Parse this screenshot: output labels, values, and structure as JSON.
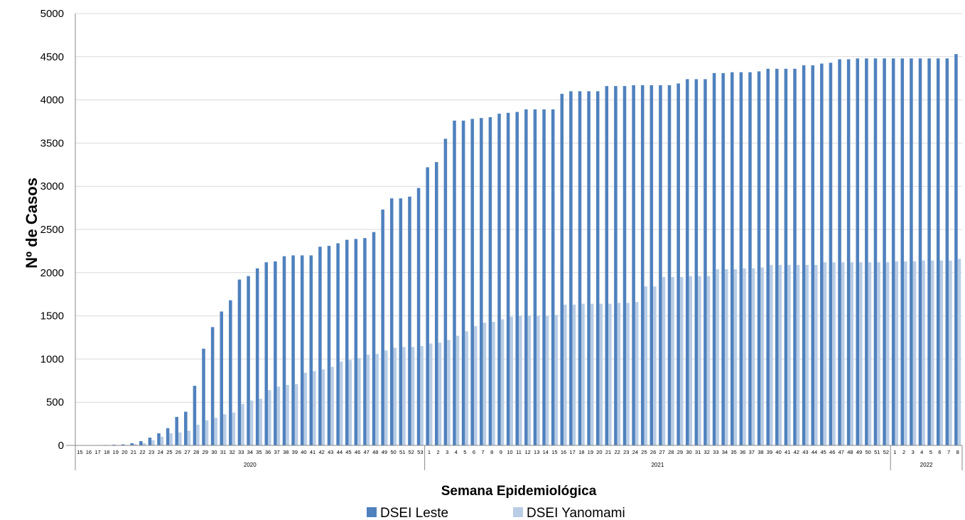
{
  "chart_data": {
    "type": "bar",
    "xlabel": "Semana Epidemiológica",
    "ylabel": "Nº de Casos",
    "ylim": [
      0,
      5000
    ],
    "yticks": [
      0,
      500,
      1000,
      1500,
      2000,
      2500,
      3000,
      3500,
      4000,
      4500,
      5000
    ],
    "grid": true,
    "legend_position": "bottom",
    "categories": [
      "15",
      "16",
      "17",
      "18",
      "19",
      "20",
      "21",
      "22",
      "23",
      "24",
      "25",
      "26",
      "27",
      "28",
      "29",
      "30",
      "31",
      "32",
      "33",
      "34",
      "35",
      "36",
      "37",
      "38",
      "39",
      "40",
      "41",
      "42",
      "43",
      "44",
      "45",
      "46",
      "47",
      "48",
      "49",
      "50",
      "51",
      "52",
      "53",
      "1",
      "2",
      "3",
      "4",
      "5",
      "6",
      "7",
      "8",
      "9",
      "10",
      "11",
      "12",
      "13",
      "14",
      "15",
      "16",
      "17",
      "18",
      "19",
      "20",
      "21",
      "22",
      "23",
      "24",
      "25",
      "26",
      "27",
      "28",
      "29",
      "30",
      "31",
      "32",
      "33",
      "34",
      "35",
      "36",
      "37",
      "38",
      "39",
      "40",
      "41",
      "42",
      "43",
      "44",
      "45",
      "46",
      "47",
      "48",
      "49",
      "50",
      "51",
      "52",
      "1",
      "2",
      "3",
      "4",
      "5",
      "6",
      "7",
      "8"
    ],
    "year_groups": [
      {
        "label": "2020",
        "count": 39
      },
      {
        "label": "2021",
        "count": 52
      },
      {
        "label": "2022",
        "count": 8
      }
    ],
    "series": [
      {
        "name": "DSEI Leste",
        "color": "#4F81BD",
        "values": [
          2,
          3,
          4,
          5,
          8,
          12,
          25,
          50,
          90,
          140,
          200,
          330,
          390,
          690,
          1120,
          1370,
          1550,
          1680,
          1920,
          1960,
          2050,
          2120,
          2130,
          2190,
          2200,
          2200,
          2200,
          2300,
          2310,
          2340,
          2380,
          2390,
          2400,
          2470,
          2730,
          2860,
          2860,
          2880,
          2980,
          3220,
          3280,
          3550,
          3760,
          3760,
          3780,
          3790,
          3800,
          3840,
          3850,
          3860,
          3890,
          3890,
          3890,
          3890,
          4070,
          4100,
          4100,
          4100,
          4100,
          4160,
          4160,
          4160,
          4170,
          4170,
          4170,
          4170,
          4170,
          4190,
          4240,
          4240,
          4240,
          4310,
          4310,
          4320,
          4320,
          4320,
          4330,
          4360,
          4360,
          4360,
          4360,
          4400,
          4400,
          4420,
          4430,
          4470,
          4470,
          4480,
          4480,
          4480,
          4480,
          4480,
          4480,
          4480,
          4480,
          4480,
          4480,
          4480,
          4530
        ]
      },
      {
        "name": "DSEI Yanomami",
        "color": "#B9CDE5",
        "values": [
          0,
          0,
          0,
          0,
          2,
          5,
          15,
          25,
          60,
          100,
          140,
          150,
          170,
          240,
          290,
          320,
          360,
          380,
          480,
          520,
          540,
          640,
          680,
          700,
          710,
          840,
          860,
          880,
          910,
          970,
          990,
          1010,
          1050,
          1060,
          1100,
          1130,
          1140,
          1140,
          1150,
          1180,
          1190,
          1220,
          1270,
          1320,
          1380,
          1420,
          1430,
          1460,
          1490,
          1500,
          1500,
          1500,
          1500,
          1510,
          1630,
          1630,
          1640,
          1640,
          1640,
          1640,
          1650,
          1650,
          1660,
          1840,
          1840,
          1950,
          1950,
          1950,
          1960,
          1960,
          1960,
          2040,
          2040,
          2040,
          2050,
          2050,
          2060,
          2090,
          2090,
          2090,
          2090,
          2090,
          2090,
          2120,
          2120,
          2120,
          2120,
          2120,
          2120,
          2120,
          2120,
          2130,
          2130,
          2130,
          2140,
          2140,
          2140,
          2140,
          2160
        ]
      }
    ]
  }
}
